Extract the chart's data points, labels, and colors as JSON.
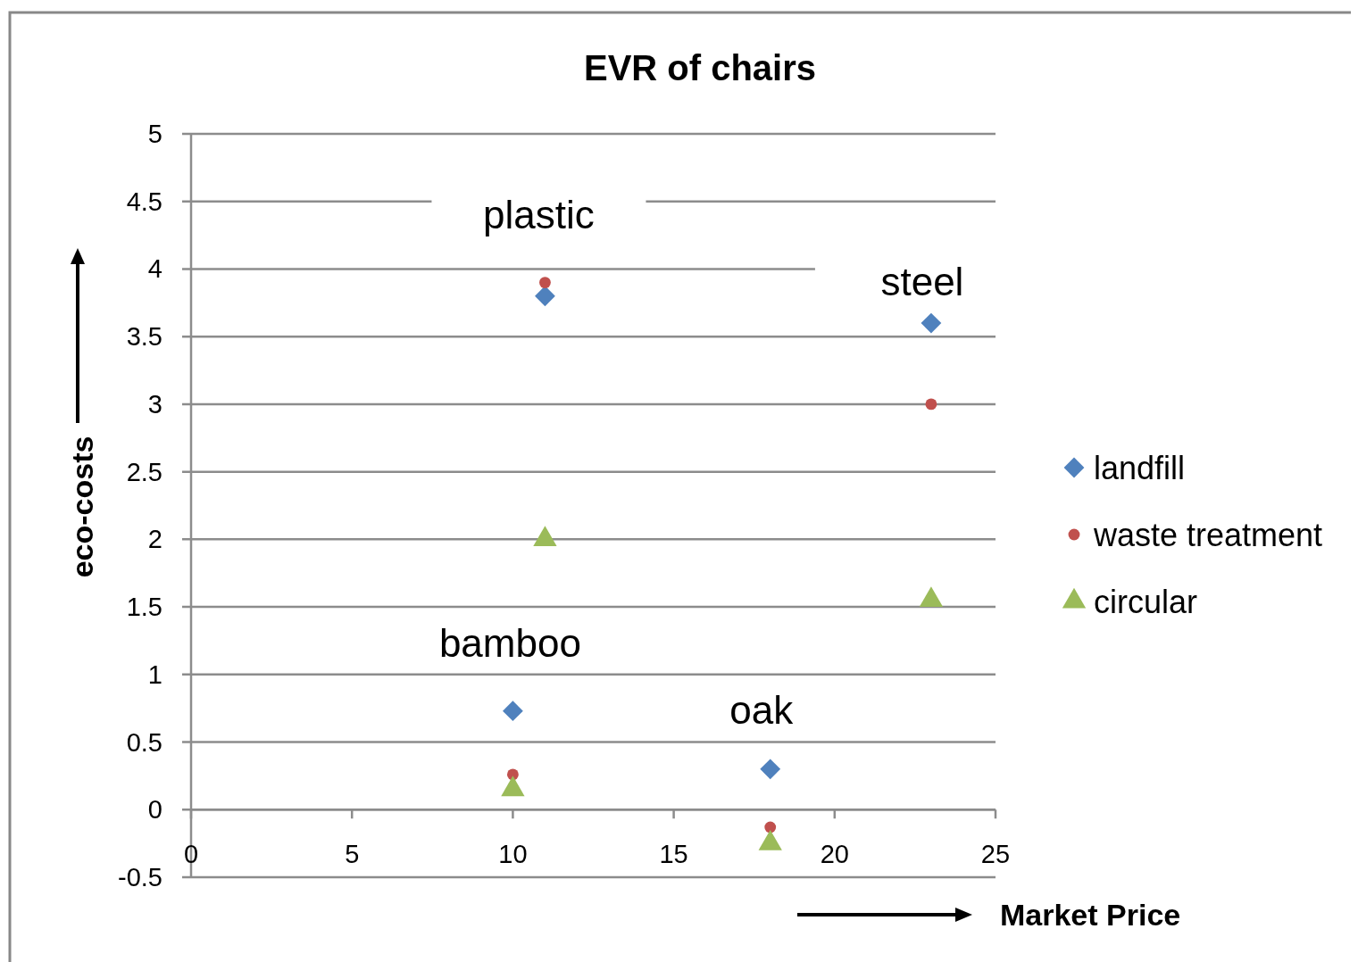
{
  "chart_data": {
    "type": "scatter",
    "title": "EVR of chairs",
    "xlabel": "Market Price",
    "ylabel": "eco-costs",
    "xlim": [
      0,
      25
    ],
    "xticks": [
      0,
      5,
      10,
      15,
      20,
      25
    ],
    "ylim": [
      -0.5,
      5
    ],
    "yticks": [
      -0.5,
      0,
      0.5,
      1,
      1.5,
      2,
      2.5,
      3,
      3.5,
      4,
      4.5,
      5
    ],
    "grid": "y",
    "legend": "right",
    "x": [
      11,
      23,
      10,
      18
    ],
    "series": [
      {
        "name": "landfill",
        "color": "#4f81bd",
        "marker": "diamond",
        "values": [
          3.8,
          3.6,
          0.73,
          0.3
        ]
      },
      {
        "name": "waste treatment",
        "color": "#c0504d",
        "marker": "circle",
        "values": [
          3.9,
          3.0,
          0.26,
          -0.13
        ]
      },
      {
        "name": "circular",
        "color": "#9bbb59",
        "marker": "triangle",
        "values": [
          2.0,
          1.55,
          0.15,
          -0.25
        ]
      }
    ],
    "annotations": [
      "plastic",
      "steel",
      "bamboo",
      "oak"
    ]
  }
}
